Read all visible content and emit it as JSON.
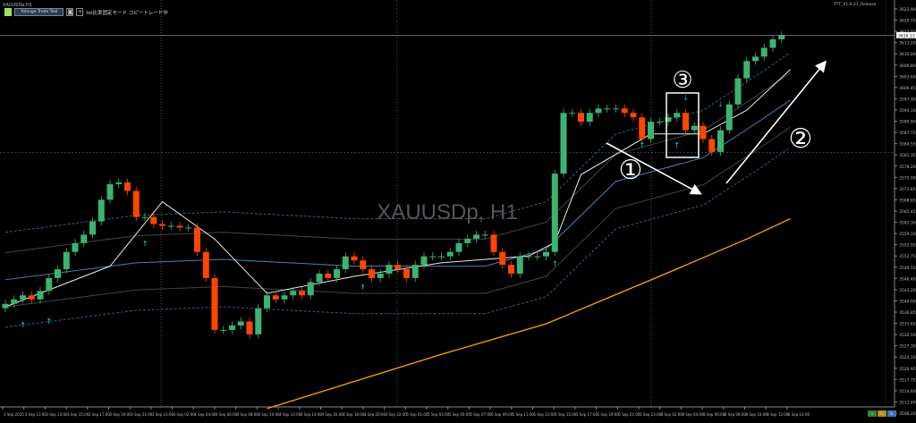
{
  "window": {
    "symbol_title": "XAUUSDp,H1",
    "watermark": "XAUUSDp, H1",
    "version": "TTT_V1.6.21_Release"
  },
  "toolbar": {
    "tool_button": "Yotsuge Trade Tool",
    "camera_icon": "camera-icon",
    "plus_label": "+",
    "mode_text": "lot比率固定モード コピートレード中"
  },
  "colors": {
    "bull": "#3cb371",
    "bear": "#ff4500",
    "ma_fast": "#e8e8e8",
    "ma_mid": "#4682b4",
    "ma_slow": "#ffa500",
    "bands": "#3d5a80",
    "up_arrow": "#00e5ee",
    "down_arrow": "#1e90ff"
  },
  "annotations": {
    "circle1": "①",
    "circle2": "②",
    "circle3": "③"
  },
  "price_axis": {
    "labels": [
      "3623.90",
      "3620.75",
      "3617.55",
      "3613.20",
      "3610.00",
      "3606.80",
      "3603.60",
      "3600.45",
      "3597.30",
      "3594.10",
      "3590.90",
      "3587.75",
      "3584.55",
      "3581.35",
      "3578.20",
      "3575.00",
      "3571.85",
      "3568.65",
      "3565.45",
      "3562.30",
      "3559.10",
      "3555.95",
      "3552.75",
      "3549.55",
      "3546.40",
      "3543.20",
      "3540.00",
      "3536.85",
      "3533.65",
      "3530.50",
      "3527.30",
      "3524.10",
      "3520.95",
      "3517.75",
      "3514.60",
      "3511.40",
      "3508.20"
    ],
    "current": "3616.13"
  },
  "time_axis": {
    "labels": [
      "3 Sep 2025",
      "3 Sep 11:00",
      "3 Sep 13:00",
      "3 Sep 15:00",
      "3 Sep 17:00",
      "3 Sep 19:00",
      "3 Sep 21:00",
      "3 Sep 23:00",
      "4 Sep 02:00",
      "4 Sep 04:00",
      "4 Sep 06:00",
      "4 Sep 08:00",
      "4 Sep 10:00",
      "4 Sep 12:00",
      "4 Sep 14:00",
      "4 Sep 16:00",
      "4 Sep 18:00",
      "4 Sep 20:00",
      "4 Sep 22:00",
      "5 Sep 01:00",
      "5 Sep 03:00",
      "5 Sep 05:00",
      "5 Sep 07:00",
      "5 Sep 09:00",
      "5 Sep 11:00",
      "5 Sep 13:00",
      "5 Sep 15:00",
      "5 Sep 17:00",
      "5 Sep 19:00",
      "5 Sep 21:00",
      "5 Sep 23:00",
      "8 Sep 02:00",
      "8 Sep 04:00",
      "8 Sep 06:00",
      "8 Sep 08:00",
      "8 Sep 10:00",
      "8 Sep 12:00",
      "8 Sep 14:00"
    ]
  },
  "corner_buttons": [
    "≡",
    "BC",
    "SL"
  ],
  "chart_data": {
    "type": "candlestick",
    "ylim": [
      3506.5,
      3626.5
    ],
    "closes": [
      3536.9,
      3538.2,
      3539.4,
      3538.2,
      3540.7,
      3544.5,
      3547.1,
      3552.2,
      3554.8,
      3557.3,
      3561.2,
      3567.6,
      3572.2,
      3572.7,
      3570.2,
      3562.5,
      3562.5,
      3560.4,
      3559.9,
      3559.9,
      3559.4,
      3559.4,
      3552.2,
      3544.5,
      3529.2,
      3529.2,
      3530.5,
      3531.7,
      3527.9,
      3535.6,
      3539.4,
      3538.2,
      3539.4,
      3540.7,
      3539.4,
      3543.3,
      3545.8,
      3544.5,
      3547.1,
      3550.9,
      3549.7,
      3547.1,
      3544.5,
      3545.8,
      3548.4,
      3547.1,
      3544.5,
      3548.4,
      3550.9,
      3550.9,
      3550.9,
      3552.2,
      3554.8,
      3556.1,
      3557.3,
      3557.3,
      3552.2,
      3548.4,
      3545.8,
      3550.9,
      3550.9,
      3550.9,
      3552.2,
      3575.3,
      3593.2,
      3593.2,
      3590.6,
      3593.2,
      3594.5,
      3594.5,
      3594.5,
      3593.2,
      3591.9,
      3585.5,
      3590.6,
      3590.6,
      3591.9,
      3593.2,
      3588.1,
      3589.4,
      3585.5,
      3581.7,
      3588.1,
      3595.7,
      3603.4,
      3608.5,
      3609.8,
      3612.4,
      3614.9,
      3616.1
    ],
    "ma_fast": [
      [
        0,
        3536
      ],
      [
        12,
        3548
      ],
      [
        18,
        3567
      ],
      [
        24,
        3556
      ],
      [
        30,
        3540
      ],
      [
        40,
        3545
      ],
      [
        50,
        3549
      ],
      [
        60,
        3551
      ],
      [
        63,
        3555
      ],
      [
        66,
        3575
      ],
      [
        74,
        3587
      ],
      [
        80,
        3587
      ],
      [
        85,
        3594
      ],
      [
        90,
        3606
      ]
    ],
    "ma_mid": [
      [
        0,
        3544
      ],
      [
        15,
        3549
      ],
      [
        25,
        3550
      ],
      [
        40,
        3548
      ],
      [
        55,
        3548
      ],
      [
        62,
        3553
      ],
      [
        70,
        3573
      ],
      [
        80,
        3580
      ],
      [
        86,
        3590
      ],
      [
        90,
        3597
      ]
    ],
    "ma_slow": [
      [
        30,
        3506
      ],
      [
        50,
        3522
      ],
      [
        62,
        3531
      ],
      [
        75,
        3545
      ],
      [
        85,
        3556
      ],
      [
        90,
        3562
      ]
    ]
  }
}
